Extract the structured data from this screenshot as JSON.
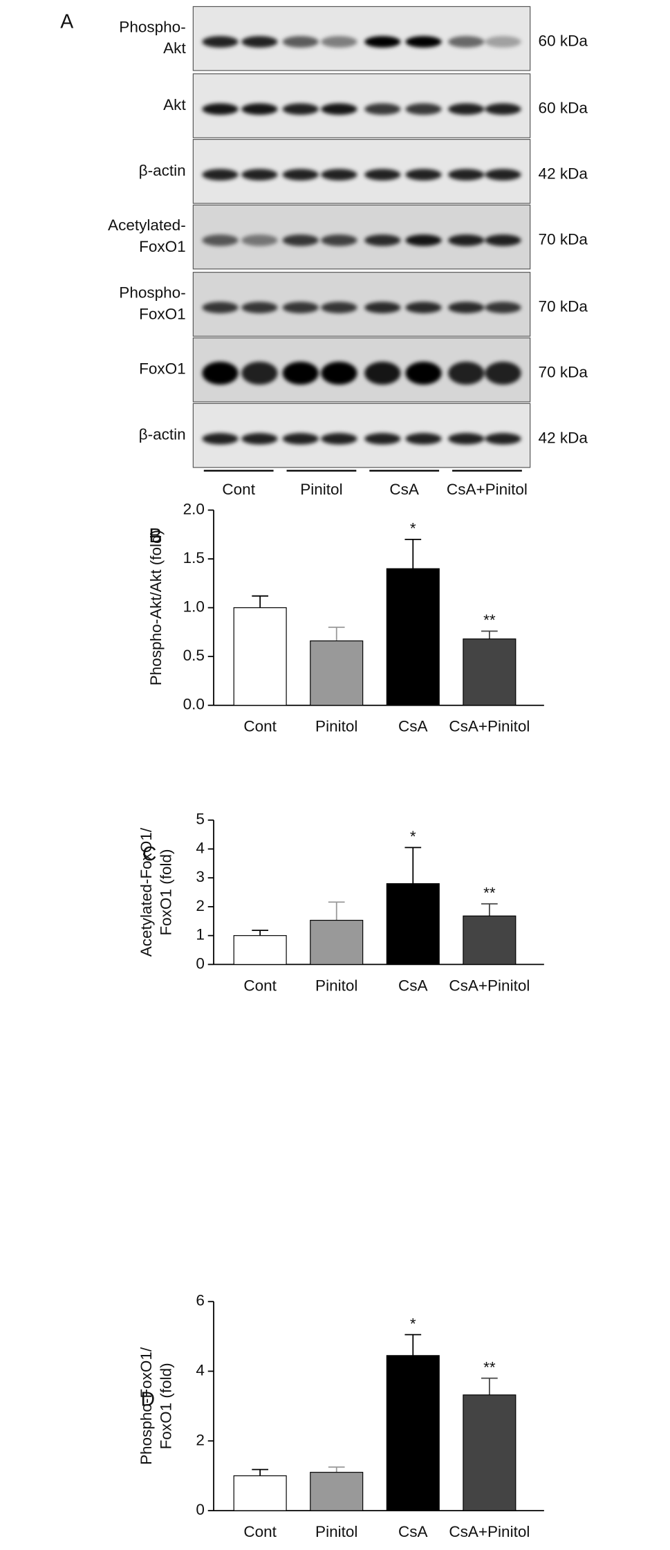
{
  "panel_a": {
    "label": "A",
    "rows": [
      {
        "label": [
          "Phospho-",
          "Akt"
        ],
        "size": "60 kDa"
      },
      {
        "label": [
          "Akt"
        ],
        "size": "60 kDa"
      },
      {
        "label": [
          "β-actin"
        ],
        "size": "42 kDa"
      },
      {
        "label": [
          "Acetylated-",
          "FoxO1"
        ],
        "size": "70 kDa"
      },
      {
        "label": [
          "Phospho-",
          "FoxO1"
        ],
        "size": "70 kDa"
      },
      {
        "label": [
          "FoxO1"
        ],
        "size": "70 kDa"
      },
      {
        "label": [
          "β-actin"
        ],
        "size": "42 kDa"
      }
    ],
    "groups": [
      "Cont",
      "Pinitol",
      "CsA",
      "CsA+Pinitol"
    ]
  },
  "chart_data": [
    {
      "type": "bar",
      "panel": "B",
      "ylabel": [
        "Phospho-Akt/Akt (fold)"
      ],
      "categories": [
        "Cont",
        "Pinitol",
        "CsA",
        "CsA+Pinitol"
      ],
      "values": [
        1.0,
        0.66,
        1.4,
        0.68
      ],
      "errors": [
        0.12,
        0.14,
        0.3,
        0.08
      ],
      "annotations": [
        null,
        null,
        "*",
        "**"
      ],
      "colors": [
        "#ffffff",
        "#999999",
        "#000000",
        "#444444"
      ],
      "ylim": [
        0,
        2
      ],
      "yticks": [
        {
          "value": 0,
          "label": "0.0"
        },
        0.5,
        {
          "value": 1,
          "label": "1.0"
        },
        1.5,
        {
          "value": 2,
          "label": "2.0"
        }
      ]
    },
    {
      "type": "bar",
      "panel": "C",
      "ylabel": [
        "Acetylated-FoxO1/",
        "FoxO1 (fold)"
      ],
      "categories": [
        "Cont",
        "Pinitol",
        "CsA",
        "CsA+Pinitol"
      ],
      "values": [
        1.0,
        1.53,
        2.8,
        1.68
      ],
      "errors": [
        0.18,
        0.63,
        1.25,
        0.42
      ],
      "annotations": [
        null,
        null,
        "*",
        "**"
      ],
      "colors": [
        "#ffffff",
        "#999999",
        "#000000",
        "#444444"
      ],
      "ylim": [
        0,
        5
      ],
      "yticks": [
        0,
        1,
        2,
        3,
        4,
        5
      ]
    },
    {
      "type": "bar",
      "panel": "D",
      "ylabel": [
        "Phospho-FoxO1/",
        "FoxO1 (fold)"
      ],
      "categories": [
        "Cont",
        "Pinitol",
        "CsA",
        "CsA+Pinitol"
      ],
      "values": [
        1.0,
        1.1,
        4.45,
        3.32
      ],
      "errors": [
        0.18,
        0.15,
        0.6,
        0.48
      ],
      "annotations": [
        null,
        null,
        "*",
        "**"
      ],
      "colors": [
        "#ffffff",
        "#999999",
        "#000000",
        "#444444"
      ],
      "ylim": [
        0,
        6
      ],
      "yticks": [
        0,
        2,
        4,
        6
      ]
    }
  ]
}
